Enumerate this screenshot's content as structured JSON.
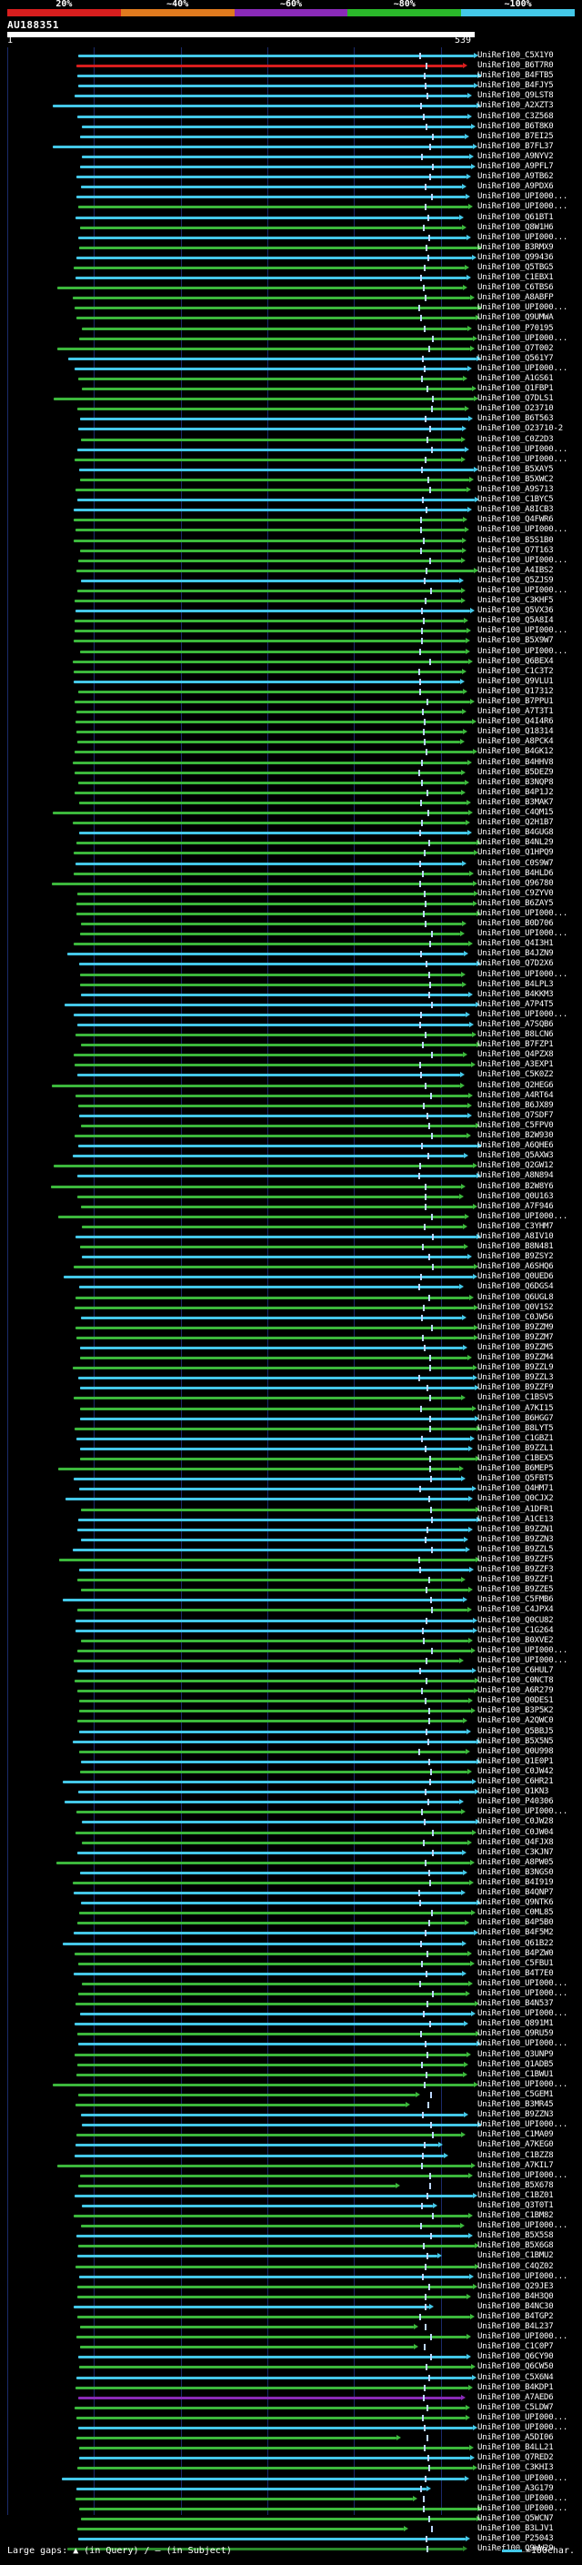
{
  "scale": {
    "labels": [
      "20%",
      "~40%",
      "~60%",
      "~80%",
      "~100%"
    ],
    "colors": [
      "#d81e1e",
      "#e07a1e",
      "#8a2ab8",
      "#2ab82a",
      "#44c8e8"
    ]
  },
  "query": {
    "id": "AU188351",
    "start": "1",
    "end": "539"
  },
  "hit_colors": {
    "high": "#44c8e8",
    "mid": "#3cb83c",
    "mid2": "#2a8a2a",
    "low": "#8a2ab8",
    "red": "#d81e1e"
  },
  "hits": [
    "UniRef100_C5X1Y0",
    "UniRef100_B6T7R0",
    "UniRef100_B4FTB5",
    "UniRef100_B4FJY5",
    "UniRef100_Q9LST8",
    "UniRef100_A2XZT3",
    "UniRef100_C3Z568",
    "UniRef100_B6T8K0",
    "UniRef100_B7EI25",
    "UniRef100_B7FL37",
    "UniRef100_A9NYV2",
    "UniRef100_A9PFL7",
    "UniRef100_A9TB62",
    "UniRef100_A9PDX6",
    "UniRef100_UPI000...",
    "UniRef100_UPI000...",
    "UniRef100_Q61BT1",
    "UniRef100_Q8W1H6",
    "UniRef100_UPI000...",
    "UniRef100_B3RMX9",
    "UniRef100_Q99436",
    "UniRef100_Q5TBG5",
    "UniRef100_C1EBX1",
    "UniRef100_C6TBS6",
    "UniRef100_A8ABFP",
    "UniRef100_UPI000...",
    "UniRef100_Q9UMWA",
    "UniRef100_P70195",
    "UniRef100_UPI000...",
    "UniRef100_Q7T002",
    "UniRef100_Q561Y7",
    "UniRef100_UPI000...",
    "UniRef100_A1GS61",
    "UniRef100_Q1FBP1",
    "UniRef100_Q7DLS1",
    "UniRef100_O23710",
    "UniRef100_B6T563",
    "UniRef100_O23710-2",
    "UniRef100_C0Z2D3",
    "UniRef100_UPI000...",
    "UniRef100_UPI000...",
    "UniRef100_B5XAY5",
    "UniRef100_B5XWC2",
    "UniRef100_A9S713",
    "UniRef100_C1BYC5",
    "UniRef100_A8ICB3",
    "UniRef100_Q4FWR6",
    "UniRef100_UPI000...",
    "UniRef100_B5S1B0",
    "UniRef100_Q7T163",
    "UniRef100_UPI000...",
    "UniRef100_A4IBS2",
    "UniRef100_Q5ZJS9",
    "UniRef100_UPI000...",
    "UniRef100_C3KHF5",
    "UniRef100_Q5VX36",
    "UniRef100_Q5A8I4",
    "UniRef100_UPI000...",
    "UniRef100_B5X9W7",
    "UniRef100_UPI000...",
    "UniRef100_Q6BEX4",
    "UniRef100_C1C3T2",
    "UniRef100_Q9VLU1",
    "UniRef100_Q17312",
    "UniRef100_B7PPU1",
    "UniRef100_A7T3T1",
    "UniRef100_Q4I4R6",
    "UniRef100_Q18314",
    "UniRef100_A8PCK4",
    "UniRef100_B4GK12",
    "UniRef100_B4HHV8",
    "UniRef100_B5DEZ9",
    "UniRef100_B3NQP8",
    "UniRef100_B4P1J2",
    "UniRef100_B3MAK7",
    "UniRef100_C4QM15",
    "UniRef100_Q2H1B7",
    "UniRef100_B4GUG8",
    "UniRef100_B4NL29",
    "UniRef100_Q1HPQ9",
    "UniRef100_C0S9W7",
    "UniRef100_B4HLD6",
    "UniRef100_Q96780",
    "UniRef100_C9ZYV0",
    "UniRef100_B6ZAY5",
    "UniRef100_UPI000...",
    "UniRef100_B0D706",
    "UniRef100_UPI000...",
    "UniRef100_Q4I3H1",
    "UniRef100_B4JZN9",
    "UniRef100_Q7D2X6",
    "UniRef100_UPI000...",
    "UniRef100_B4LPL3",
    "UniRef100_B4KKM3",
    "UniRef100_A7P4T5",
    "UniRef100_UPI000...",
    "UniRef100_A7SQB6",
    "UniRef100_B8LCN6",
    "UniRef100_B7FZP1",
    "UniRef100_Q4PZX8",
    "UniRef100_A3EXP1",
    "UniRef100_C5K0Z2",
    "UniRef100_Q2HEG6",
    "UniRef100_A4RT64",
    "UniRef100_B6JX89",
    "UniRef100_Q7SDF7",
    "UniRef100_C5FPV0",
    "UniRef100_B2W930",
    "UniRef100_A6QHE6",
    "UniRef100_Q5AXW3",
    "UniRef100_Q2GW12",
    "UniRef100_A8N894",
    "UniRef100_B2W8Y6",
    "UniRef100_Q0U163",
    "UniRef100_A7F946",
    "UniRef100_UPI000...",
    "UniRef100_C3YHM7",
    "UniRef100_A8IV10",
    "UniRef100_B8N481",
    "UniRef100_B9ZSY2",
    "UniRef100_A6SHQ6",
    "UniRef100_Q0UED6",
    "UniRef100_Q6DGS4",
    "UniRef100_Q6UGL8",
    "UniRef100_Q0V1S2",
    "UniRef100_C0JW56",
    "UniRef100_B9ZZM9",
    "UniRef100_B9ZZM7",
    "UniRef100_B9ZZM5",
    "UniRef100_B9ZZM4",
    "UniRef100_B9ZZL9",
    "UniRef100_B9ZZL3",
    "UniRef100_B9ZZF9",
    "UniRef100_C1BSV5",
    "UniRef100_A7KI15",
    "UniRef100_B6HGG7",
    "UniRef100_B8LYT5",
    "UniRef100_C1GBZ1",
    "UniRef100_B9ZZL1",
    "UniRef100_C1BEX5",
    "UniRef100_B6MEP5",
    "UniRef100_Q5FBT5",
    "UniRef100_Q4HM71",
    "UniRef100_Q0CJX2",
    "UniRef100_A1DFR1",
    "UniRef100_A1CE13",
    "UniRef100_B9ZZN1",
    "UniRef100_B9ZZN3",
    "UniRef100_B9ZZL5",
    "UniRef100_B9ZZF5",
    "UniRef100_B9ZZF3",
    "UniRef100_B9ZZF1",
    "UniRef100_B9ZZE5",
    "UniRef100_C5FMB6",
    "UniRef100_C4JPX4",
    "UniRef100_Q0CU82",
    "UniRef100_C1G264",
    "UniRef100_B0XVE2",
    "UniRef100_UPI000...",
    "UniRef100_UPI000...",
    "UniRef100_C6HUL7",
    "UniRef100_C0NCT8",
    "UniRef100_A6R279",
    "UniRef100_Q0DES1",
    "UniRef100_B3P5K2",
    "UniRef100_A2QWC0",
    "UniRef100_Q5BBJ5",
    "UniRef100_B5X5N5",
    "UniRef100_Q0U998",
    "UniRef100_Q1E0P1",
    "UniRef100_C0JW42",
    "UniRef100_C6HR21",
    "UniRef100_Q1KN3",
    "UniRef100_P40306",
    "UniRef100_UPI000...",
    "UniRef100_C0JW28",
    "UniRef100_C0JW04",
    "UniRef100_Q4FJX8",
    "UniRef100_C3KJN7",
    "UniRef100_A8PW05",
    "UniRef100_B3NGS0",
    "UniRef100_B4I919",
    "UniRef100_B4QNP7",
    "UniRef100_Q9NTK6",
    "UniRef100_C0ML85",
    "UniRef100_B4P5B0",
    "UniRef100_B4F5M2",
    "UniRef100_Q61B22",
    "UniRef100_B4PZW0",
    "UniRef100_C5FBU1",
    "UniRef100_B4T7E0",
    "UniRef100_UPI000...",
    "UniRef100_UPI000...",
    "UniRef100_B4N537",
    "UniRef100_UPI000...",
    "UniRef100_Q891M1",
    "UniRef100_Q9RU59",
    "UniRef100_UPI000...",
    "UniRef100_Q3UNP9",
    "UniRef100_Q1ADB5",
    "UniRef100_C1BWU1",
    "UniRef100_UPI000...",
    "UniRef100_C5GEM1",
    "UniRef100_B3MR45",
    "UniRef100_B9ZZN3",
    "UniRef100_UPI000...",
    "UniRef100_C1MA09",
    "UniRef100_A7KEG0",
    "UniRef100_C1BZZ8",
    "UniRef100_A7KIL7",
    "UniRef100_UPI000...",
    "UniRef100_B5X678",
    "UniRef100_C1BZ01",
    "UniRef100_Q3T0T1",
    "UniRef100_C1BM82",
    "UniRef100_UPI000...",
    "UniRef100_B5X5S8",
    "UniRef100_B5X6G8",
    "UniRef100_C1BMU2",
    "UniRef100_C4QZ02",
    "UniRef100_UPI000...",
    "UniRef100_Q29JE3",
    "UniRef100_B4H3Q0",
    "UniRef100_B4NC30",
    "UniRef100_B4TGP2",
    "UniRef100_B4L237",
    "UniRef100_UPI000...",
    "UniRef100_C1C0P7",
    "UniRef100_Q6CY90",
    "UniRef100_Q6CW50",
    "UniRef100_C5X6N4",
    "UniRef100_B4KDP1",
    "UniRef100_A7AED6",
    "UniRef100_C5LDW7",
    "UniRef100_UPI000...",
    "UniRef100_UPI000...",
    "UniRef100_A5DI06",
    "UniRef100_B4LL21",
    "UniRef100_Q7RED2",
    "UniRef100_C3KHI3",
    "UniRef100_UPI000...",
    "UniRef100_A3G179",
    "UniRef100_UPI000...",
    "UniRef100_UPI000...",
    "UniRef100_Q5WCN7",
    "UniRef100_B3LJV1",
    "UniRef100_P25043",
    "UniRef100_Q9WW29"
  ],
  "footer": {
    "legend": "Large gaps: ▲ (in Query) / — (in Subject)",
    "scale_text": "=100char."
  }
}
